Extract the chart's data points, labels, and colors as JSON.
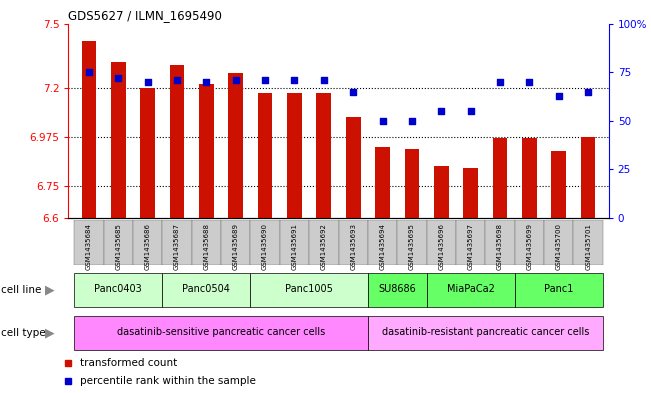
{
  "title": "GDS5627 / ILMN_1695490",
  "samples": [
    "GSM1435684",
    "GSM1435685",
    "GSM1435686",
    "GSM1435687",
    "GSM1435688",
    "GSM1435689",
    "GSM1435690",
    "GSM1435691",
    "GSM1435692",
    "GSM1435693",
    "GSM1435694",
    "GSM1435695",
    "GSM1435696",
    "GSM1435697",
    "GSM1435698",
    "GSM1435699",
    "GSM1435700",
    "GSM1435701"
  ],
  "transformed_count": [
    7.42,
    7.32,
    7.2,
    7.31,
    7.22,
    7.27,
    7.18,
    7.18,
    7.18,
    7.07,
    6.93,
    6.92,
    6.84,
    6.83,
    6.97,
    6.97,
    6.91,
    6.975
  ],
  "percentile_rank": [
    75,
    72,
    70,
    71,
    70,
    71,
    71,
    71,
    71,
    65,
    50,
    50,
    55,
    55,
    70,
    70,
    63,
    65
  ],
  "cell_lines": [
    {
      "name": "Panc0403",
      "start": 0,
      "end": 2,
      "color": "#ccffcc"
    },
    {
      "name": "Panc0504",
      "start": 3,
      "end": 5,
      "color": "#ccffcc"
    },
    {
      "name": "Panc1005",
      "start": 6,
      "end": 9,
      "color": "#ccffcc"
    },
    {
      "name": "SU8686",
      "start": 10,
      "end": 11,
      "color": "#66ff66"
    },
    {
      "name": "MiaPaCa2",
      "start": 12,
      "end": 14,
      "color": "#66ff66"
    },
    {
      "name": "Panc1",
      "start": 15,
      "end": 17,
      "color": "#66ff66"
    }
  ],
  "cell_types": [
    {
      "name": "dasatinib-sensitive pancreatic cancer cells",
      "start": 0,
      "end": 9,
      "color": "#ff88ff"
    },
    {
      "name": "dasatinib-resistant pancreatic cancer cells",
      "start": 10,
      "end": 17,
      "color": "#ffaaff"
    }
  ],
  "ylim_left": [
    6.6,
    7.5
  ],
  "ylim_right": [
    0,
    100
  ],
  "yticks_left": [
    6.6,
    6.75,
    6.975,
    7.2,
    7.5
  ],
  "ytick_labels_left": [
    "6.6",
    "6.75",
    "6.975",
    "7.2",
    "7.5"
  ],
  "yticks_right": [
    0,
    25,
    50,
    75,
    100
  ],
  "ytick_labels_right": [
    "0",
    "25",
    "50",
    "75",
    "100%"
  ],
  "bar_color": "#cc1100",
  "dot_color": "#0000cc",
  "bar_bottom": 6.6,
  "grid_yticks": [
    6.75,
    6.975,
    7.2
  ],
  "sample_bg_color": "#cccccc",
  "bar_width": 0.5,
  "xlim": [
    -0.7,
    17.7
  ]
}
